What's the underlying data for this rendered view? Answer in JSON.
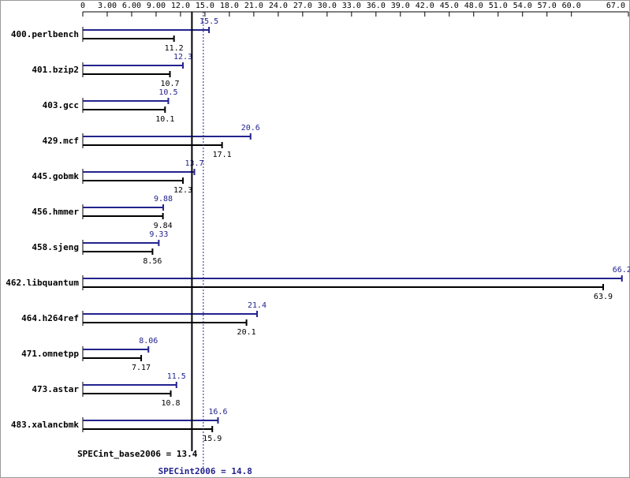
{
  "chart_data": {
    "type": "bar",
    "categories": [
      "400.perlbench",
      "401.bzip2",
      "403.gcc",
      "429.mcf",
      "445.gobmk",
      "456.hmmer",
      "458.sjeng",
      "462.libquantum",
      "464.h264ref",
      "471.omnetpp",
      "473.astar",
      "483.xalancbmk"
    ],
    "series": [
      {
        "color": "#23238e",
        "values": [
          15.5,
          12.3,
          10.5,
          20.6,
          13.7,
          9.88,
          9.33,
          66.2,
          21.4,
          8.06,
          11.5,
          16.6
        ]
      },
      {
        "color": "#000000",
        "values": [
          11.2,
          10.7,
          10.1,
          17.1,
          12.3,
          9.84,
          8.56,
          63.9,
          20.1,
          7.17,
          10.8,
          15.9
        ]
      }
    ],
    "xlim": [
      0,
      67
    ],
    "xticks": [
      0,
      {
        "value": 3,
        "label": "3.00"
      },
      {
        "value": 6,
        "label": "6.00"
      },
      {
        "value": 9,
        "label": "9.00"
      },
      {
        "value": 12,
        "label": "12.0"
      },
      {
        "value": 15,
        "label": "15.0"
      },
      {
        "value": 18,
        "label": "18.0"
      },
      {
        "value": 21,
        "label": "21.0"
      },
      {
        "value": 24,
        "label": "24.0"
      },
      {
        "value": 27,
        "label": "27.0"
      },
      {
        "value": 30,
        "label": "30.0"
      },
      {
        "value": 33,
        "label": "33.0"
      },
      {
        "value": 36,
        "label": "36.0"
      },
      {
        "value": 39,
        "label": "39.0"
      },
      {
        "value": 42,
        "label": "42.0"
      },
      {
        "value": 45,
        "label": "45.0"
      },
      {
        "value": 48,
        "label": "48.0"
      },
      {
        "value": 51,
        "label": "51.0"
      },
      {
        "value": 54,
        "label": "54.0"
      },
      {
        "value": 57,
        "label": "57.0"
      },
      {
        "value": 60,
        "label": "60.0"
      },
      {
        "value": 67,
        "label": "67.0"
      }
    ],
    "base_line": {
      "value": 13.4,
      "label": "SPECint_base2006 = 13.4",
      "color": "#000000"
    },
    "peak_line": {
      "value": 14.8,
      "label": "SPECint2006 = 14.8",
      "color": "#23238e"
    }
  }
}
